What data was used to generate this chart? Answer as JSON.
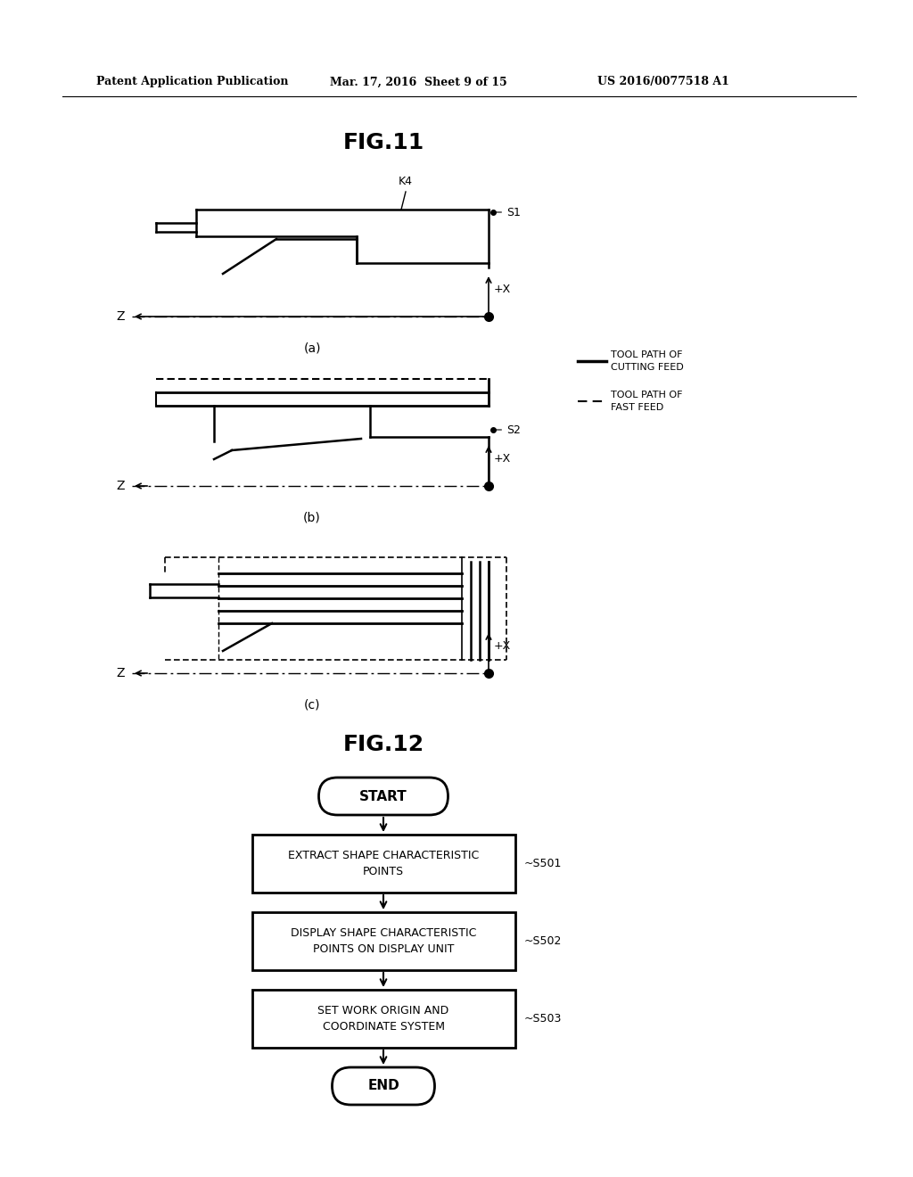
{
  "bg_color": "#ffffff",
  "header_text": "Patent Application Publication",
  "header_date": "Mar. 17, 2016  Sheet 9 of 15",
  "header_patent": "US 2016/0077518 A1",
  "fig11_title": "FIG.11",
  "fig12_title": "FIG.12",
  "label_a": "(a)",
  "label_b": "(b)",
  "label_c": "(c)",
  "label_k4": "K4",
  "label_s1": "S1",
  "label_s2": "S2",
  "label_z": "Z",
  "label_px": "+X",
  "legend_solid": "TOOL PATH OF\nCUTTING FEED",
  "legend_dashed": "TOOL PATH OF\nFAST FEED",
  "flow_start": "START",
  "flow_s501_label": "~S501",
  "flow_s501_text": "EXTRACT SHAPE CHARACTERISTIC\nPOINTS",
  "flow_s502_label": "~S502",
  "flow_s502_text": "DISPLAY SHAPE CHARACTERISTIC\nPOINTS ON DISPLAY UNIT",
  "flow_s503_label": "~S503",
  "flow_s503_text": "SET WORK ORIGIN AND\nCOORDINATE SYSTEM",
  "flow_end": "END"
}
